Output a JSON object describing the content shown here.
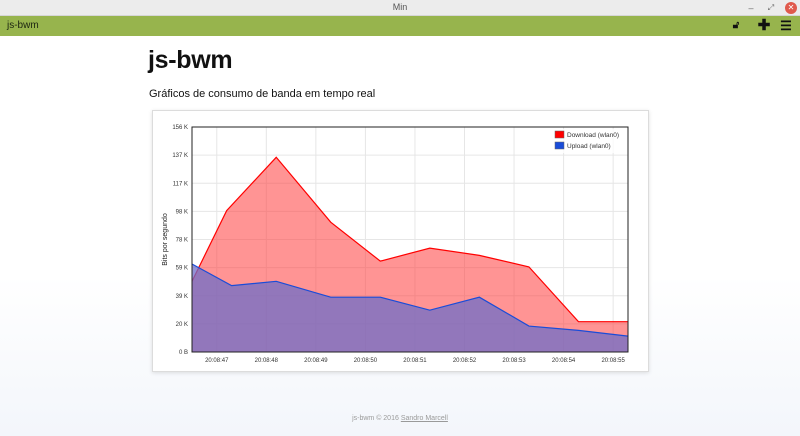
{
  "window": {
    "title": "Min"
  },
  "appbar": {
    "title": "js-bwm"
  },
  "page": {
    "heading": "js-bwm",
    "subtitle": "Gráficos de consumo de banda em tempo real"
  },
  "footer": {
    "text": "js-bwm © 2016",
    "author": "Sandro Marcell"
  },
  "colors": {
    "download": "#ff0000",
    "upload": "#1a4cd8",
    "appbar": "#97b44d"
  },
  "chart_data": {
    "type": "area",
    "ylabel": "Bits por segundo",
    "y_ticks": [
      "0 B",
      "20 K",
      "39 K",
      "59 K",
      "78 K",
      "98 K",
      "117 K",
      "137 K",
      "156 K"
    ],
    "ylim": [
      0,
      156
    ],
    "x_ticks": [
      "20:08:47",
      "20:08:48",
      "20:08:49",
      "20:08:50",
      "20:08:51",
      "20:08:52",
      "20:08:53",
      "20:08:54",
      "20:08:55"
    ],
    "legend_position": "top-right",
    "series": [
      {
        "name": "Download (wlan0)",
        "points": [
          [
            46.5,
            49
          ],
          [
            47.2,
            98
          ],
          [
            48.2,
            135
          ],
          [
            49.3,
            90
          ],
          [
            50.3,
            63
          ],
          [
            51.3,
            72
          ],
          [
            52.3,
            67
          ],
          [
            53.3,
            59
          ],
          [
            54.3,
            21
          ],
          [
            55.3,
            21
          ]
        ]
      },
      {
        "name": "Upload (wlan0)",
        "points": [
          [
            46.5,
            61
          ],
          [
            47.3,
            46
          ],
          [
            48.2,
            49
          ],
          [
            49.3,
            38
          ],
          [
            50.3,
            38
          ],
          [
            51.3,
            29
          ],
          [
            52.3,
            38
          ],
          [
            53.3,
            18
          ],
          [
            54.3,
            15
          ],
          [
            55.3,
            11
          ]
        ]
      }
    ]
  }
}
